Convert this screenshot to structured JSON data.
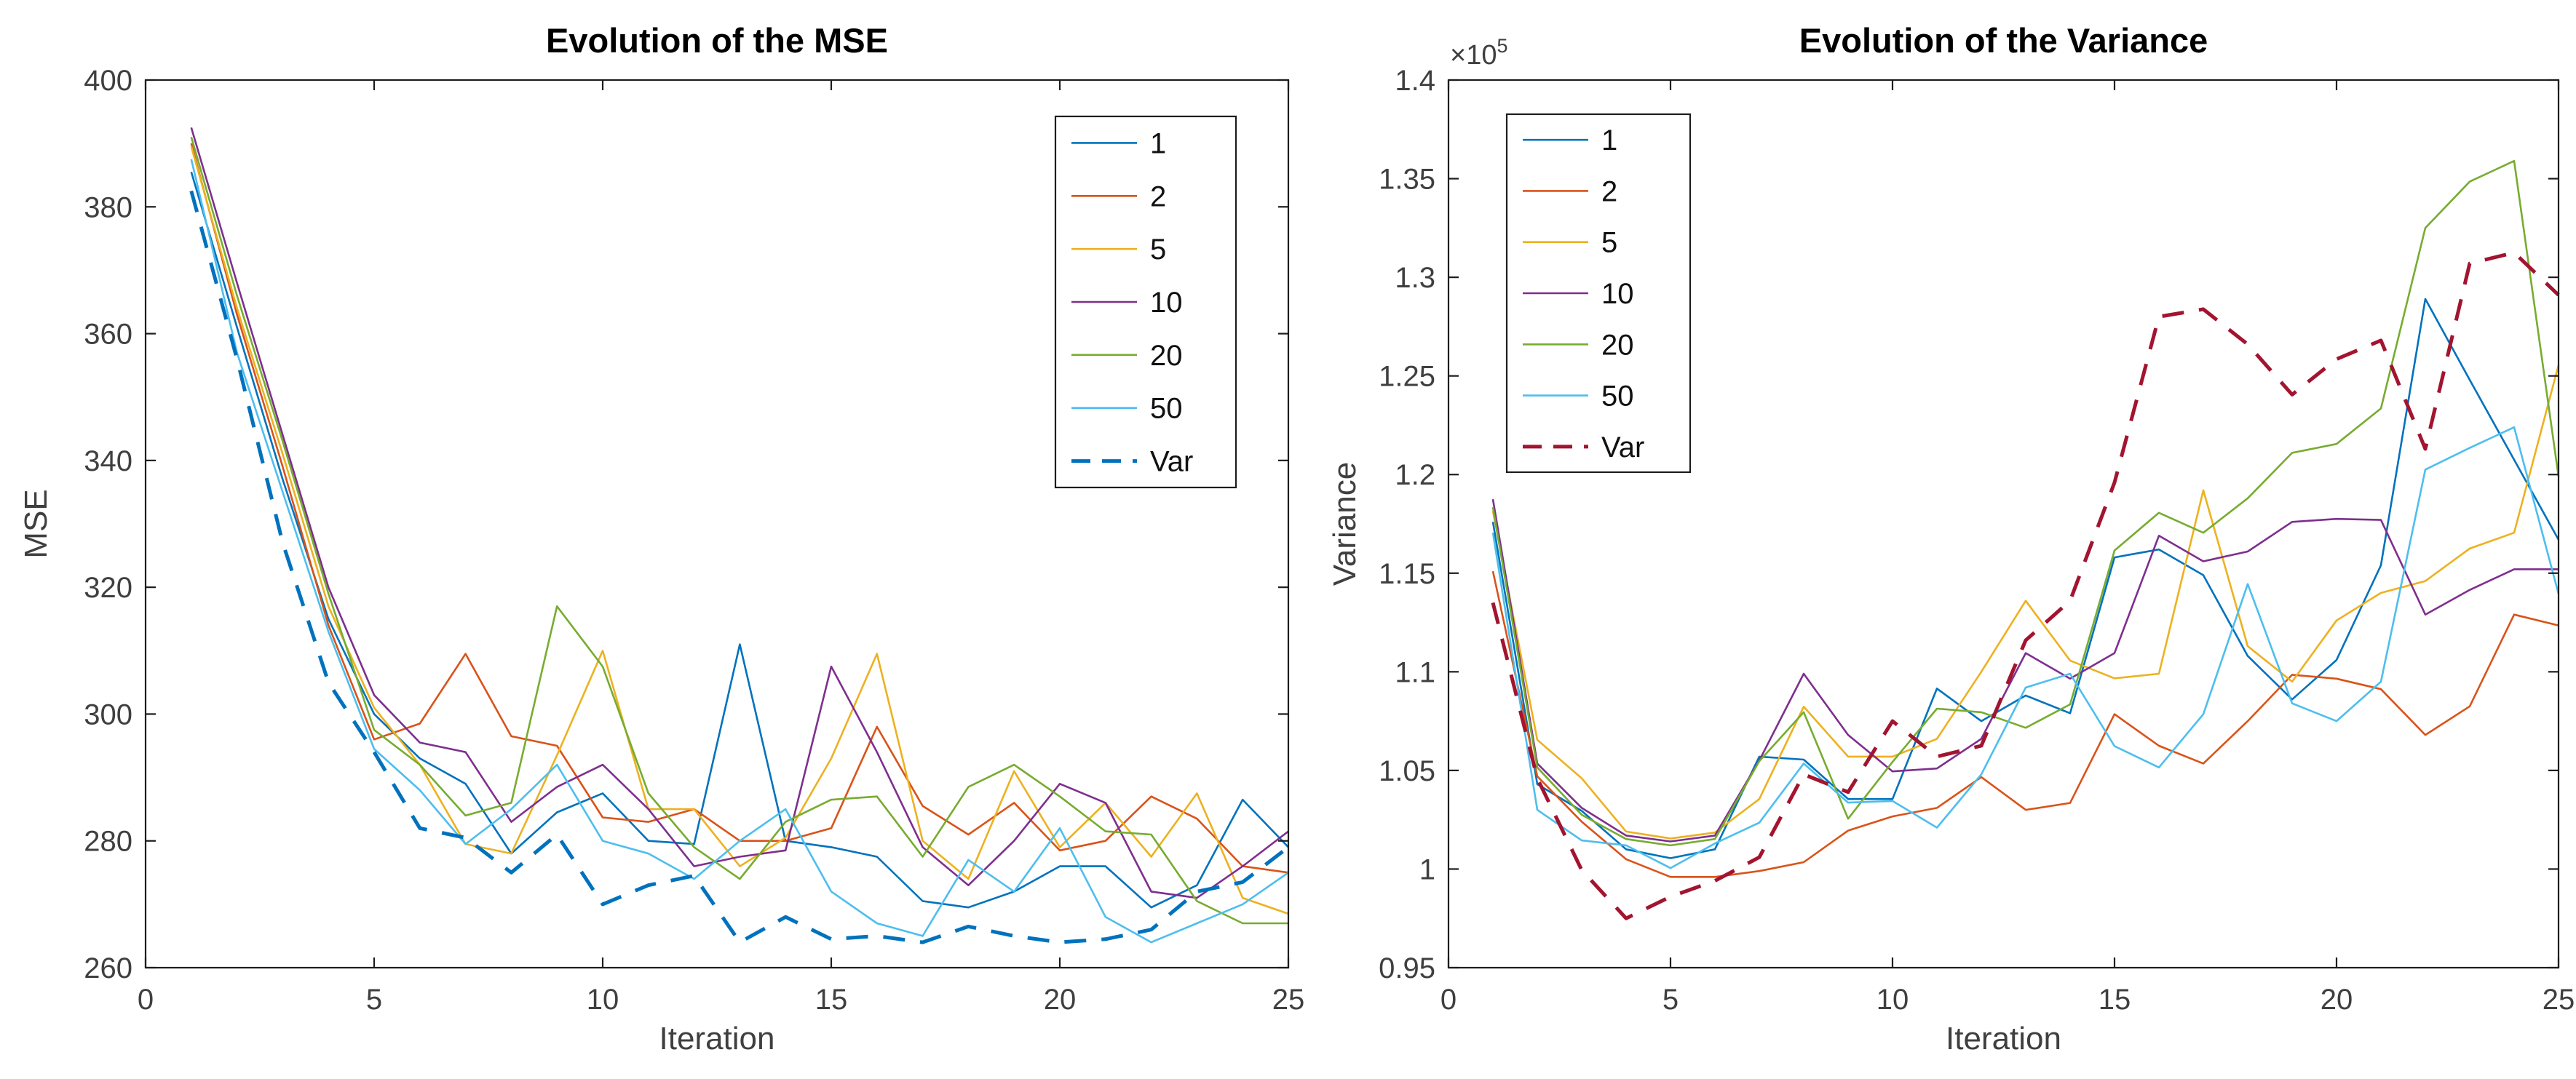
{
  "figure": {
    "background": "#ffffff",
    "axis_color": "#1c1c1c",
    "tick_label_color": "#3f3f3f",
    "title_color": "#000000"
  },
  "chart_data": [
    {
      "type": "line",
      "title": "Evolution of the MSE",
      "xlabel": "Iteration",
      "ylabel": "MSE",
      "xlim": [
        0,
        25
      ],
      "ylim": [
        260,
        400
      ],
      "xticks": [
        0,
        5,
        10,
        15,
        20,
        25
      ],
      "xtick_labels": [
        "0",
        "5",
        "10",
        "15",
        "20",
        "25"
      ],
      "yticks": [
        260,
        280,
        300,
        320,
        340,
        360,
        380,
        400
      ],
      "ytick_labels": [
        "260",
        "280",
        "300",
        "320",
        "340",
        "360",
        "380",
        "400"
      ],
      "grid": false,
      "legend_position": "top-right",
      "x": [
        1,
        2,
        3,
        4,
        5,
        6,
        7,
        8,
        9,
        10,
        11,
        12,
        13,
        14,
        15,
        16,
        17,
        18,
        19,
        20,
        21,
        22,
        23,
        24,
        25
      ],
      "series": [
        {
          "name": "1",
          "color": "#0072BD",
          "dash": false,
          "values": [
            385.5,
            361,
            337,
            315,
            300,
            293,
            289,
            278,
            284.5,
            287.5,
            280,
            279.5,
            311,
            280,
            279,
            277.5,
            270.5,
            269.5,
            272,
            276,
            276,
            269.5,
            273,
            286.5,
            279
          ]
        },
        {
          "name": "2",
          "color": "#D95319",
          "dash": false,
          "values": [
            390,
            363,
            339,
            314,
            296,
            298.5,
            309.5,
            296.5,
            295,
            283.7,
            283,
            285,
            280,
            280,
            282,
            298,
            285.5,
            281,
            286,
            278.5,
            280,
            287,
            283.5,
            276,
            275
          ]
        },
        {
          "name": "5",
          "color": "#EDB120",
          "dash": false,
          "values": [
            389.5,
            364,
            341,
            317,
            301,
            292,
            279.5,
            278,
            293.5,
            310,
            285,
            285,
            276,
            280.5,
            293,
            309.5,
            280,
            274,
            291,
            279,
            286,
            277.5,
            287.5,
            271,
            268.5
          ]
        },
        {
          "name": "10",
          "color": "#7E2F8E",
          "dash": false,
          "values": [
            392.5,
            368,
            344,
            320,
            303,
            295.5,
            294,
            283,
            288.5,
            292,
            285,
            276,
            277.5,
            278.5,
            307.5,
            294,
            279,
            273,
            280,
            289,
            286,
            272,
            271,
            276,
            281.5
          ]
        },
        {
          "name": "20",
          "color": "#77AC30",
          "dash": false,
          "values": [
            391,
            366,
            343,
            319,
            297.5,
            292,
            284,
            286,
            317,
            307.5,
            287.5,
            279,
            274,
            283,
            286.5,
            287,
            277.5,
            288.5,
            292,
            287,
            281.5,
            281,
            270.5,
            267,
            267
          ]
        },
        {
          "name": "50",
          "color": "#4DBEEE",
          "dash": false,
          "values": [
            387.5,
            357,
            335,
            313,
            294.5,
            288,
            279.5,
            285,
            292,
            280,
            278,
            274,
            280,
            285,
            272,
            267,
            265,
            277,
            272,
            282,
            268,
            264,
            267,
            270,
            275
          ]
        },
        {
          "name": "Var",
          "color": "#0072BD",
          "dash": true,
          "values": [
            382.5,
            356,
            327,
            305,
            294,
            282,
            280.5,
            275,
            281,
            270,
            273,
            274.5,
            264,
            268,
            264.5,
            265,
            264,
            266.5,
            265,
            264,
            264.5,
            266,
            272,
            273.5,
            279
          ]
        }
      ]
    },
    {
      "type": "line",
      "title": "Evolution of the Variance",
      "xlabel": "Iteration",
      "ylabel": "Variance",
      "y_exponent_label": "×10",
      "y_exponent_power": "5",
      "xlim": [
        0,
        25
      ],
      "ylim": [
        0.95,
        1.4
      ],
      "xticks": [
        0,
        5,
        10,
        15,
        20,
        25
      ],
      "xtick_labels": [
        "0",
        "5",
        "10",
        "15",
        "20",
        "25"
      ],
      "yticks": [
        0.95,
        1,
        1.05,
        1.1,
        1.15,
        1.2,
        1.25,
        1.3,
        1.35,
        1.4
      ],
      "ytick_labels": [
        "0.95",
        "1",
        "1.05",
        "1.1",
        "1.15",
        "1.2",
        "1.25",
        "1.3",
        "1.35",
        "1.4"
      ],
      "grid": false,
      "legend_position": "top-left",
      "x": [
        1,
        2,
        3,
        4,
        5,
        6,
        7,
        8,
        9,
        10,
        11,
        12,
        13,
        14,
        15,
        16,
        17,
        18,
        19,
        20,
        21,
        22,
        23,
        24,
        25
      ],
      "series": [
        {
          "name": "1",
          "color": "#0072BD",
          "dash": false,
          "values": [
            1.176,
            1.043,
            1.0295,
            1.01,
            1.0055,
            1.01,
            1.057,
            1.0555,
            1.0355,
            1.0355,
            1.0915,
            1.075,
            1.088,
            1.079,
            1.158,
            1.162,
            1.149,
            1.108,
            1.086,
            1.106,
            1.154,
            1.289,
            1.248,
            1.2075,
            1.167
          ]
        },
        {
          "name": "2",
          "color": "#D95319",
          "dash": false,
          "values": [
            1.151,
            1.047,
            1.024,
            1.005,
            0.996,
            0.996,
            0.999,
            1.0035,
            1.0195,
            1.0267,
            1.031,
            1.0466,
            1.03,
            1.0335,
            1.0785,
            1.0625,
            1.0535,
            1.075,
            1.0985,
            1.0965,
            1.0912,
            1.068,
            1.0825,
            1.129,
            1.1235
          ]
        },
        {
          "name": "5",
          "color": "#EDB120",
          "dash": false,
          "values": [
            1.1815,
            1.0655,
            1.046,
            1.019,
            1.0155,
            1.0185,
            1.0355,
            1.0823,
            1.057,
            1.057,
            1.066,
            1.1,
            1.136,
            1.1057,
            1.0967,
            1.099,
            1.192,
            1.113,
            1.095,
            1.126,
            1.14,
            1.146,
            1.1625,
            1.1705,
            1.2555
          ]
        },
        {
          "name": "10",
          "color": "#7E2F8E",
          "dash": false,
          "values": [
            1.1875,
            1.0535,
            1.031,
            1.017,
            1.014,
            1.017,
            1.055,
            1.099,
            1.068,
            1.0495,
            1.051,
            1.066,
            1.1095,
            1.0965,
            1.1095,
            1.169,
            1.156,
            1.161,
            1.176,
            1.1775,
            1.177,
            1.129,
            1.1415,
            1.152,
            1.152
          ]
        },
        {
          "name": "20",
          "color": "#77AC30",
          "dash": false,
          "values": [
            1.1835,
            1.0515,
            1.0275,
            1.0152,
            1.012,
            1.0152,
            1.0547,
            1.0795,
            1.0255,
            1.0543,
            1.0813,
            1.0795,
            1.0716,
            1.0835,
            1.1615,
            1.1806,
            1.1705,
            1.188,
            1.211,
            1.2155,
            1.2335,
            1.325,
            1.3485,
            1.359,
            1.199
          ]
        },
        {
          "name": "50",
          "color": "#4DBEEE",
          "dash": false,
          "values": [
            1.1705,
            1.03,
            1.0145,
            1.012,
            1.0005,
            1.013,
            1.0235,
            1.0535,
            1.0337,
            1.0345,
            1.021,
            1.048,
            1.092,
            1.099,
            1.0623,
            1.0515,
            1.0785,
            1.1445,
            1.084,
            1.075,
            1.095,
            1.2025,
            1.2135,
            1.224,
            1.1395
          ]
        },
        {
          "name": "Var",
          "color": "#A2142F",
          "dash": true,
          "values": [
            1.135,
            1.046,
            0.9995,
            0.975,
            0.986,
            0.994,
            1.006,
            1.048,
            1.039,
            1.075,
            1.057,
            1.0625,
            1.116,
            1.136,
            1.196,
            1.28,
            1.2838,
            1.266,
            1.2405,
            1.2585,
            1.268,
            1.213,
            1.307,
            1.3125,
            1.291
          ]
        }
      ]
    }
  ]
}
